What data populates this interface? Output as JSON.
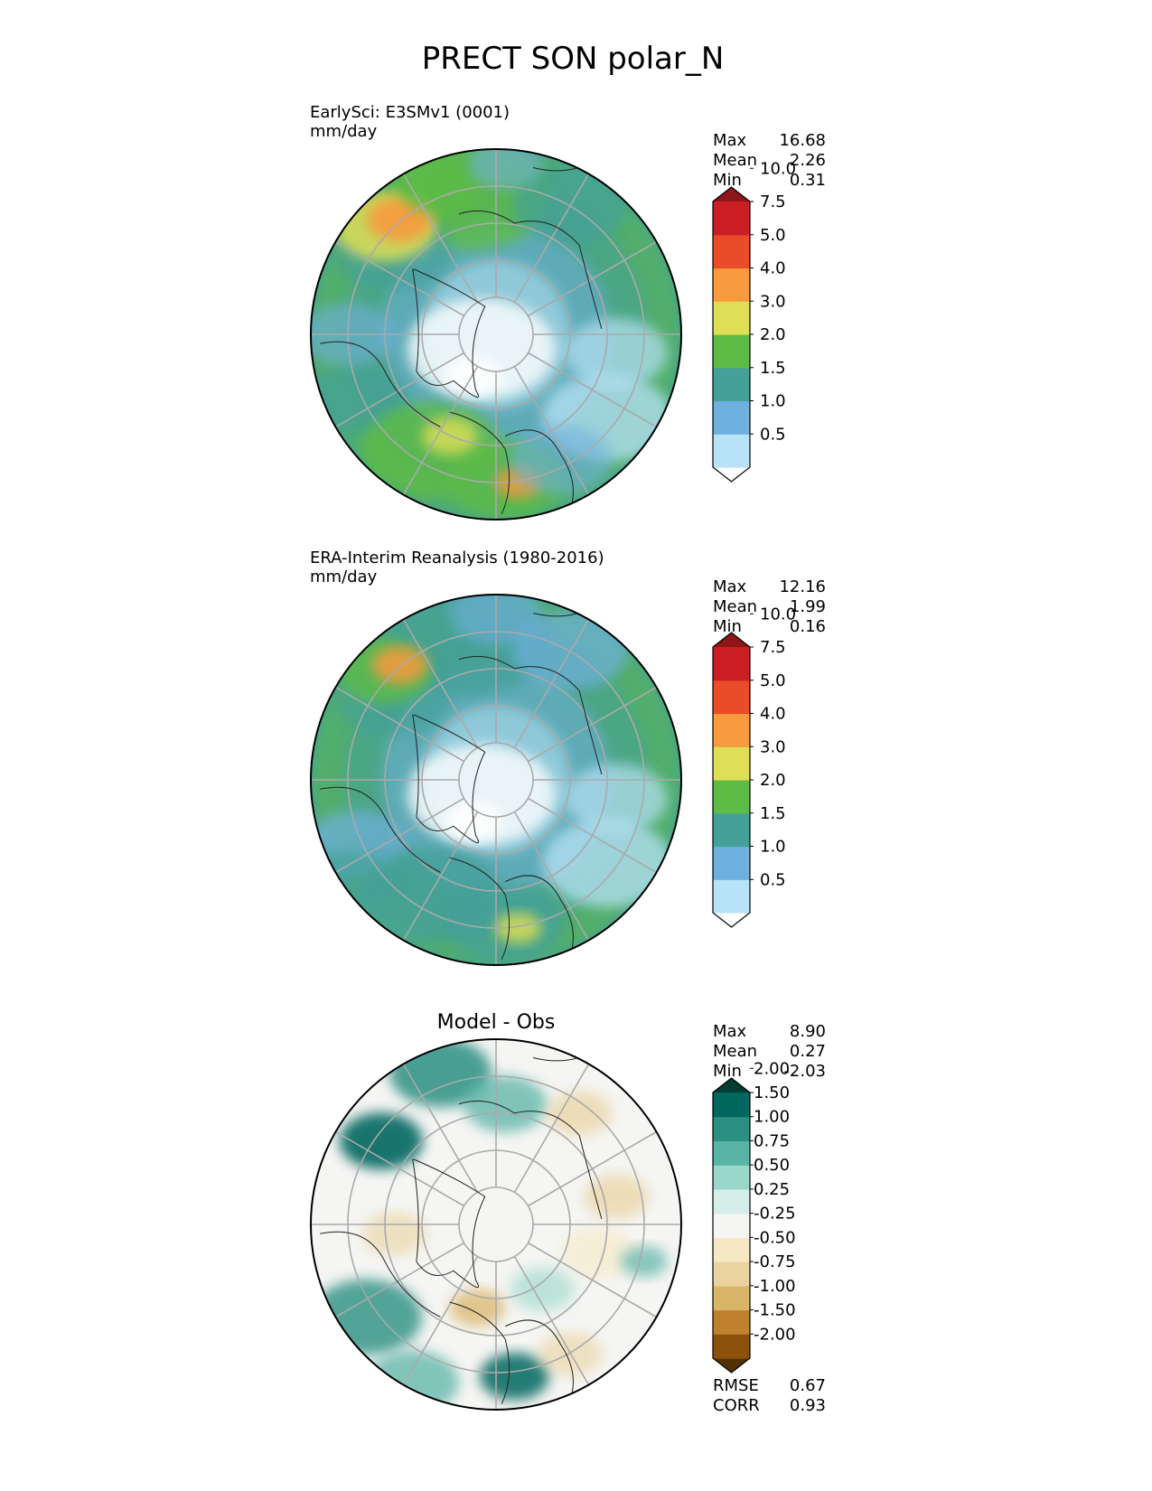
{
  "title": "PRECT SON polar_N",
  "chart_data": {
    "type": "heatmap",
    "projection": "north polar stereographic",
    "panels": [
      {
        "id": "test",
        "title": "EarlySci: E3SMv1 (0001)",
        "units": "mm/day",
        "stats": [
          {
            "label": "Max",
            "value": "16.68"
          },
          {
            "label": "Mean",
            "value": "2.26"
          },
          {
            "label": "Min",
            "value": "0.31"
          }
        ],
        "colorbar": {
          "levels": [
            "0.5",
            "1.0",
            "1.5",
            "2.0",
            "3.0",
            "4.0",
            "5.0",
            "7.5",
            "10.0"
          ],
          "colors": [
            "#ffffff",
            "#b8e2f6",
            "#6fb0e0",
            "#45a09a",
            "#5dbb46",
            "#dfdf55",
            "#f89a3e",
            "#ea4b28",
            "#cb1e24",
            "#8e1519"
          ],
          "extend": "both"
        },
        "field_type": "model"
      },
      {
        "id": "ref",
        "title": "ERA-Interim Reanalysis (1980-2016)",
        "units": "mm/day",
        "stats": [
          {
            "label": "Max",
            "value": "12.16"
          },
          {
            "label": "Mean",
            "value": "1.99"
          },
          {
            "label": "Min",
            "value": "0.16"
          }
        ],
        "colorbar": {
          "levels": [
            "0.5",
            "1.0",
            "1.5",
            "2.0",
            "3.0",
            "4.0",
            "5.0",
            "7.5",
            "10.0"
          ],
          "colors": [
            "#ffffff",
            "#b8e2f6",
            "#6fb0e0",
            "#45a09a",
            "#5dbb46",
            "#dfdf55",
            "#f89a3e",
            "#ea4b28",
            "#cb1e24",
            "#8e1519"
          ],
          "extend": "both"
        },
        "field_type": "obs"
      },
      {
        "id": "diff",
        "title": "Model - Obs",
        "units": "",
        "stats": [
          {
            "label": "Max",
            "value": "8.90"
          },
          {
            "label": "Mean",
            "value": "0.27"
          },
          {
            "label": "Min",
            "value": "-2.03"
          }
        ],
        "colorbar": {
          "levels": [
            "-2.00",
            "-1.50",
            "-1.00",
            "-0.75",
            "-0.50",
            "-0.25",
            "0.25",
            "0.50",
            "0.75",
            "1.00",
            "1.50",
            "2.00"
          ],
          "colors": [
            "#543005",
            "#8c510a",
            "#bf812d",
            "#d9b56a",
            "#e9d3a0",
            "#f6e8c3",
            "#f5f5f3",
            "#d6eeea",
            "#99d8c9",
            "#5ab4a6",
            "#2b8f81",
            "#01665e",
            "#003c30"
          ],
          "extend": "both"
        },
        "field_type": "diff",
        "metrics": [
          {
            "label": "RMSE",
            "value": "0.67"
          },
          {
            "label": "CORR",
            "value": "0.93"
          }
        ]
      }
    ]
  }
}
